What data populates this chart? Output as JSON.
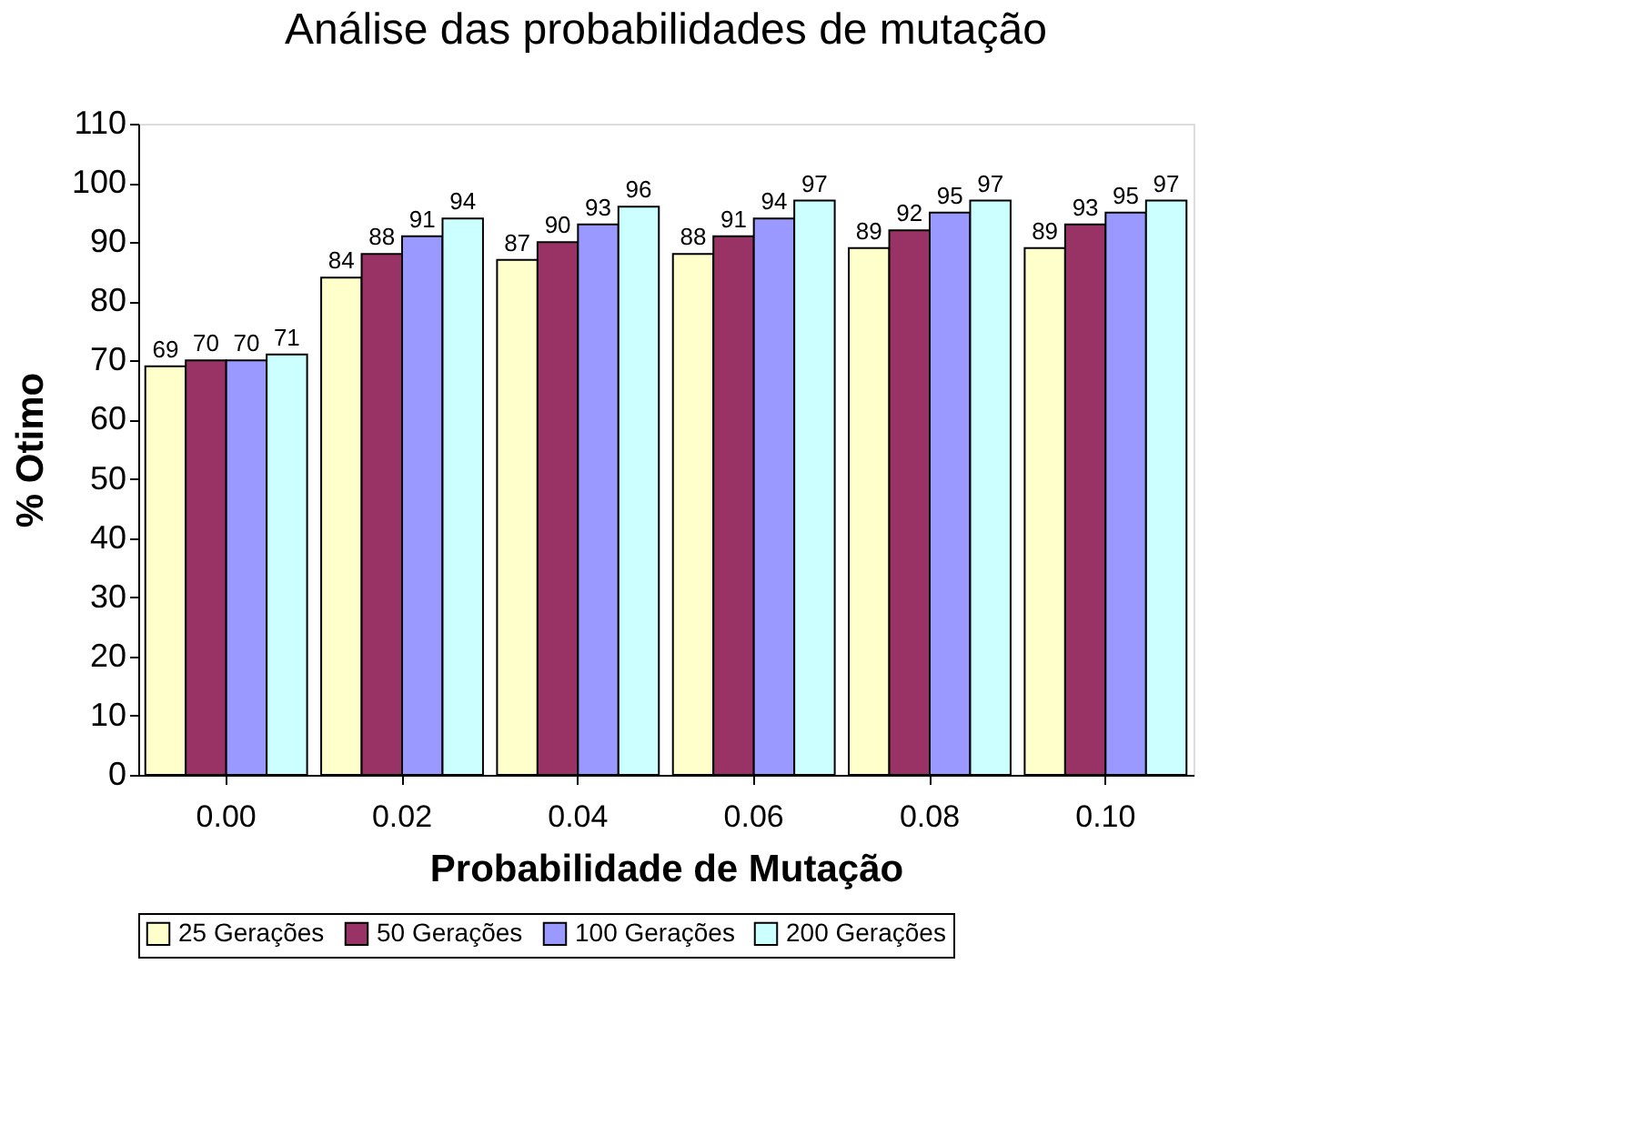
{
  "chart_data": {
    "type": "bar",
    "title": "Análise das probabilidades de mutação",
    "xlabel": "Probabilidade de Mutação",
    "ylabel": "% Otimo",
    "categories": [
      "0.00",
      "0.02",
      "0.04",
      "0.06",
      "0.08",
      "0.10"
    ],
    "series": [
      {
        "name": "25 Gerações",
        "color": "#ffffcc",
        "values": [
          69,
          84,
          87,
          88,
          89,
          89
        ]
      },
      {
        "name": "50 Gerações",
        "color": "#993366",
        "values": [
          70,
          88,
          90,
          91,
          92,
          93
        ]
      },
      {
        "name": "100 Gerações",
        "color": "#9999ff",
        "values": [
          70,
          91,
          93,
          94,
          95,
          95
        ]
      },
      {
        "name": "200 Gerações",
        "color": "#ccffff",
        "values": [
          71,
          94,
          96,
          97,
          97,
          97
        ]
      }
    ],
    "ylim": [
      0,
      110
    ],
    "yticks": [
      0,
      10,
      20,
      30,
      40,
      50,
      60,
      70,
      80,
      90,
      100,
      110
    ],
    "data_labels": true,
    "grid": false,
    "legend": "bottom"
  }
}
